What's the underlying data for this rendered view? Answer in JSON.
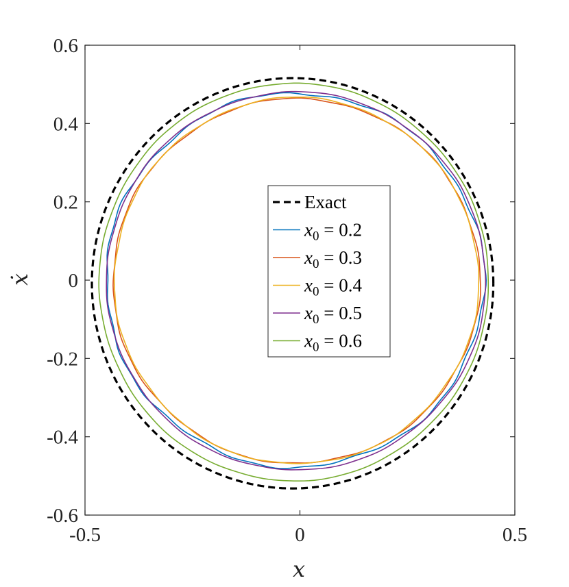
{
  "chart_data": {
    "type": "line",
    "title": "",
    "xlabel": "x",
    "ylabel": "ẋ",
    "xlim": [
      -0.5,
      0.5
    ],
    "ylim": [
      -0.6,
      0.6
    ],
    "xticks": [
      -0.5,
      0,
      0.5
    ],
    "xtick_labels": [
      "-0.5",
      "0",
      "0.5"
    ],
    "yticks": [
      -0.6,
      -0.4,
      -0.2,
      0,
      0.2,
      0.4,
      0.6
    ],
    "ytick_labels": [
      "-0.6",
      "-0.4",
      "-0.2",
      "0",
      "0.2",
      "0.4",
      "0.6"
    ],
    "grid": false,
    "legend_position": "center-right",
    "series": [
      {
        "name": "Exact",
        "legend": {
          "main": "Exact"
        },
        "color": "#000000",
        "style": "dashed",
        "cx": -0.017,
        "cy": -0.008,
        "rx": 0.467,
        "ry": 0.524,
        "jitter": 0
      },
      {
        "name": "x0 = 0.2",
        "legend": {
          "var": "x",
          "sub": "0",
          "rest": " = 0.2"
        },
        "color": "#0072BD",
        "style": "solid",
        "cx": -0.011,
        "cy": 0.0,
        "rx": 0.44,
        "ry": 0.478,
        "jitter": 0.005
      },
      {
        "name": "x0 = 0.3",
        "legend": {
          "var": "x",
          "sub": "0",
          "rest": " = 0.3"
        },
        "color": "#D95319",
        "style": "solid",
        "cx": -0.008,
        "cy": -0.002,
        "rx": 0.427,
        "ry": 0.466,
        "jitter": 0.0025
      },
      {
        "name": "x0 = 0.4",
        "legend": {
          "var": "x",
          "sub": "0",
          "rest": " = 0.4"
        },
        "color": "#EDB120",
        "style": "solid",
        "cx": -0.008,
        "cy": -0.001,
        "rx": 0.424,
        "ry": 0.468,
        "jitter": 0.002
      },
      {
        "name": "x0 = 0.5",
        "legend": {
          "var": "x",
          "sub": "0",
          "rest": " = 0.5"
        },
        "color": "#7E2F8E",
        "style": "solid",
        "cx": -0.009,
        "cy": -0.002,
        "rx": 0.441,
        "ry": 0.483,
        "jitter": 0.0015
      },
      {
        "name": "x0 = 0.6",
        "legend": {
          "var": "x",
          "sub": "0",
          "rest": " = 0.6"
        },
        "color": "#77AC30",
        "style": "solid",
        "cx": -0.014,
        "cy": -0.005,
        "rx": 0.453,
        "ry": 0.508,
        "jitter": 0.001
      }
    ]
  }
}
